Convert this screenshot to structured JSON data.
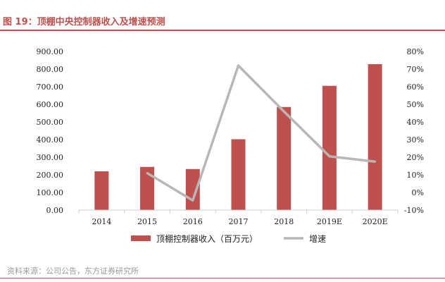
{
  "title": "图 19：顶棚中央控制器收入及增速预测",
  "source": "资料来源：公司公告，东方证券研究所",
  "colors": {
    "bar": "#c0504d",
    "line": "#b7b7b7",
    "accent": "#c0504d"
  },
  "chart_data": {
    "type": "bar+line",
    "categories": [
      "2014",
      "2015",
      "2016",
      "2017",
      "2018",
      "2019E",
      "2020E"
    ],
    "series": [
      {
        "name": "顶棚控制器收入（百万元）",
        "type": "bar",
        "axis": "left",
        "values": [
          220,
          245,
          233,
          402,
          585,
          705,
          828
        ]
      },
      {
        "name": "增速",
        "type": "line",
        "axis": "right",
        "values": [
          null,
          0.11,
          -0.045,
          0.72,
          0.46,
          0.205,
          0.175
        ]
      }
    ],
    "left_axis": {
      "min": 0,
      "max": 900,
      "step": 100,
      "tick_labels": [
        "0.00",
        "100.00",
        "200.00",
        "300.00",
        "400.00",
        "500.00",
        "600.00",
        "700.00",
        "800.00",
        "900.00"
      ]
    },
    "right_axis": {
      "min": -0.1,
      "max": 0.8,
      "step": 0.1,
      "tick_labels": [
        "-10%",
        "0%",
        "10%",
        "20%",
        "30%",
        "40%",
        "50%",
        "60%",
        "70%",
        "80%"
      ]
    },
    "legend": [
      "顶棚控制器收入（百万元）",
      "增速"
    ],
    "legend_position": "bottom"
  }
}
